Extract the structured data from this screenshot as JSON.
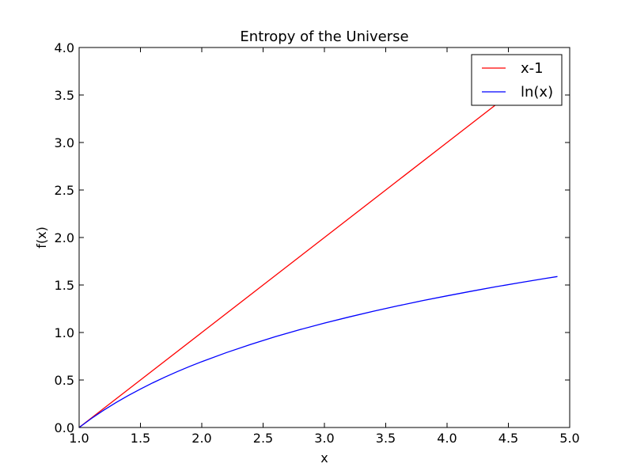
{
  "chart_data": {
    "type": "line",
    "title": "Entropy of the Universe",
    "xlabel": "x",
    "ylabel": "f(x)",
    "xlim": [
      1.0,
      5.0
    ],
    "ylim": [
      0.0,
      4.0
    ],
    "x_ticks": [
      "1.0",
      "1.5",
      "2.0",
      "2.5",
      "3.0",
      "3.5",
      "4.0",
      "4.5",
      "5.0"
    ],
    "y_ticks": [
      "0.0",
      "0.5",
      "1.0",
      "1.5",
      "2.0",
      "2.5",
      "3.0",
      "3.5",
      "4.0"
    ],
    "grid": false,
    "legend_position": "top-right",
    "series": [
      {
        "name": "x-1",
        "color": "#ff0000",
        "x": [
          1.0,
          1.5,
          2.0,
          2.5,
          3.0,
          3.5,
          4.0,
          4.5,
          4.9
        ],
        "y": [
          0.0,
          0.5,
          1.0,
          1.5,
          2.0,
          2.5,
          3.0,
          3.5,
          3.9
        ]
      },
      {
        "name": "ln(x)",
        "color": "#0000ff",
        "x": [
          1.0,
          1.1,
          1.2,
          1.3,
          1.4,
          1.5,
          1.6,
          1.7,
          1.8,
          1.9,
          2.0,
          2.2,
          2.4,
          2.6,
          2.8,
          3.0,
          3.2,
          3.4,
          3.6,
          3.8,
          4.0,
          4.2,
          4.4,
          4.6,
          4.8,
          4.9
        ],
        "y": [
          0.0,
          0.095,
          0.182,
          0.262,
          0.336,
          0.405,
          0.47,
          0.531,
          0.588,
          0.642,
          0.693,
          0.788,
          0.875,
          0.956,
          1.03,
          1.099,
          1.163,
          1.224,
          1.281,
          1.335,
          1.386,
          1.435,
          1.482,
          1.526,
          1.569,
          1.589
        ]
      }
    ]
  }
}
